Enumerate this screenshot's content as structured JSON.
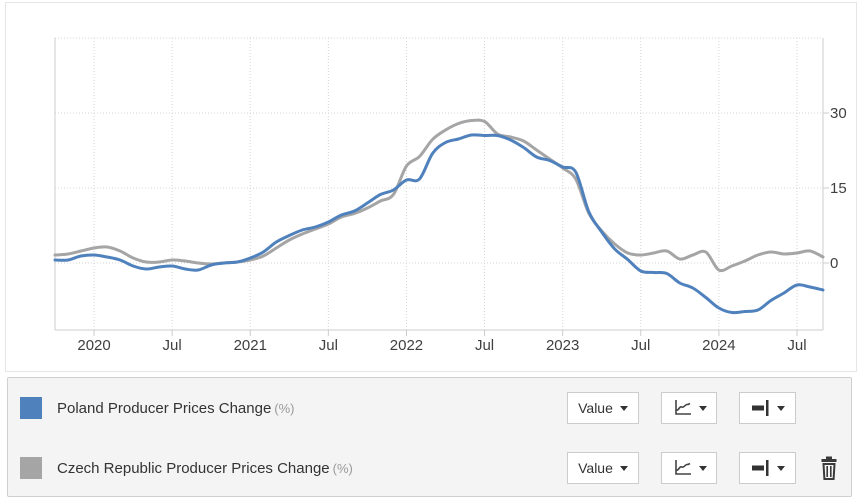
{
  "chart_data": {
    "type": "line",
    "title": "",
    "xlabel": "",
    "ylabel": "",
    "grid": "dotted",
    "legend_position": "bottom-panel",
    "ylim": [
      -13.4,
      45
    ],
    "yticks": [
      0,
      15,
      30
    ],
    "ytick_labels": [
      "0",
      "15",
      "30"
    ],
    "xtick_indices": [
      3,
      9,
      15,
      21,
      27,
      33,
      39,
      45,
      51,
      57
    ],
    "xtick_labels": [
      "2020",
      "Jul",
      "2021",
      "Jul",
      "2022",
      "Jul",
      "2023",
      "Jul",
      "2024",
      "Jul"
    ],
    "x_monthly": [
      "2019-10",
      "2019-11",
      "2019-12",
      "2020-01",
      "2020-02",
      "2020-03",
      "2020-04",
      "2020-05",
      "2020-06",
      "2020-07",
      "2020-08",
      "2020-09",
      "2020-10",
      "2020-11",
      "2020-12",
      "2021-01",
      "2021-02",
      "2021-03",
      "2021-04",
      "2021-05",
      "2021-06",
      "2021-07",
      "2021-08",
      "2021-09",
      "2021-10",
      "2021-11",
      "2021-12",
      "2022-01",
      "2022-02",
      "2022-03",
      "2022-04",
      "2022-05",
      "2022-06",
      "2022-07",
      "2022-08",
      "2022-09",
      "2022-10",
      "2022-11",
      "2022-12",
      "2023-01",
      "2023-02",
      "2023-03",
      "2023-04",
      "2023-05",
      "2023-06",
      "2023-07",
      "2023-08",
      "2023-09",
      "2023-10",
      "2023-11",
      "2023-12",
      "2024-01",
      "2024-02",
      "2024-03",
      "2024-04",
      "2024-05",
      "2024-06",
      "2024-07",
      "2024-08",
      "2024-09"
    ],
    "series": [
      {
        "name": "Poland Producer Prices Change (%)",
        "color": "#4f81bd",
        "values": [
          0.6,
          0.6,
          1.4,
          1.6,
          1.2,
          0.6,
          -0.6,
          -1.2,
          -0.8,
          -0.6,
          -1.2,
          -1.4,
          -0.4,
          0.0,
          0.2,
          1.0,
          2.2,
          4.2,
          5.5,
          6.6,
          7.2,
          8.2,
          9.6,
          10.4,
          12.0,
          13.7,
          14.6,
          16.6,
          16.8,
          21.9,
          24.1,
          24.8,
          25.6,
          25.5,
          25.5,
          24.6,
          23.1,
          21.2,
          20.5,
          19.2,
          18.2,
          10.3,
          6.2,
          2.8,
          0.7,
          -1.6,
          -1.9,
          -2.1,
          -4.0,
          -5.0,
          -6.9,
          -9.0,
          -9.9,
          -9.7,
          -9.4,
          -7.5,
          -6.0,
          -4.4,
          -4.8,
          -5.4
        ]
      },
      {
        "name": "Czech Republic Producer Prices Change (%)",
        "color": "#a5a5a5",
        "values": [
          1.6,
          1.8,
          2.4,
          3.0,
          3.2,
          2.4,
          1.0,
          0.2,
          0.2,
          0.6,
          0.4,
          0.0,
          -0.2,
          0.0,
          0.2,
          0.6,
          1.4,
          3.0,
          4.6,
          5.8,
          6.8,
          7.8,
          9.2,
          9.9,
          11.0,
          12.4,
          13.7,
          19.4,
          21.3,
          24.7,
          26.6,
          27.9,
          28.5,
          28.3,
          25.8,
          25.2,
          24.4,
          22.6,
          20.8,
          19.0,
          16.8,
          10.0,
          6.4,
          3.8,
          2.0,
          1.6,
          2.0,
          2.4,
          0.8,
          1.6,
          2.2,
          -1.4,
          -0.6,
          0.4,
          1.6,
          2.2,
          1.8,
          2.0,
          2.4,
          1.2
        ]
      }
    ],
    "colors": {
      "axis_line": "#cccccc",
      "grid_line": "#d6d6d6",
      "tick_label": "#404040"
    }
  },
  "legend": {
    "rows": [
      {
        "label": "Poland Producer Prices Change",
        "unit": "(%)",
        "swatch_color": "#4f81bd",
        "value_dropdown": "Value",
        "chart_type_icon": "line-chart",
        "line_style_icon": "line-thickness",
        "has_delete": false
      },
      {
        "label": "Czech Republic Producer Prices Change",
        "unit": "(%)",
        "swatch_color": "#a5a5a5",
        "value_dropdown": "Value",
        "chart_type_icon": "line-chart",
        "line_style_icon": "line-thickness",
        "has_delete": true
      }
    ]
  }
}
